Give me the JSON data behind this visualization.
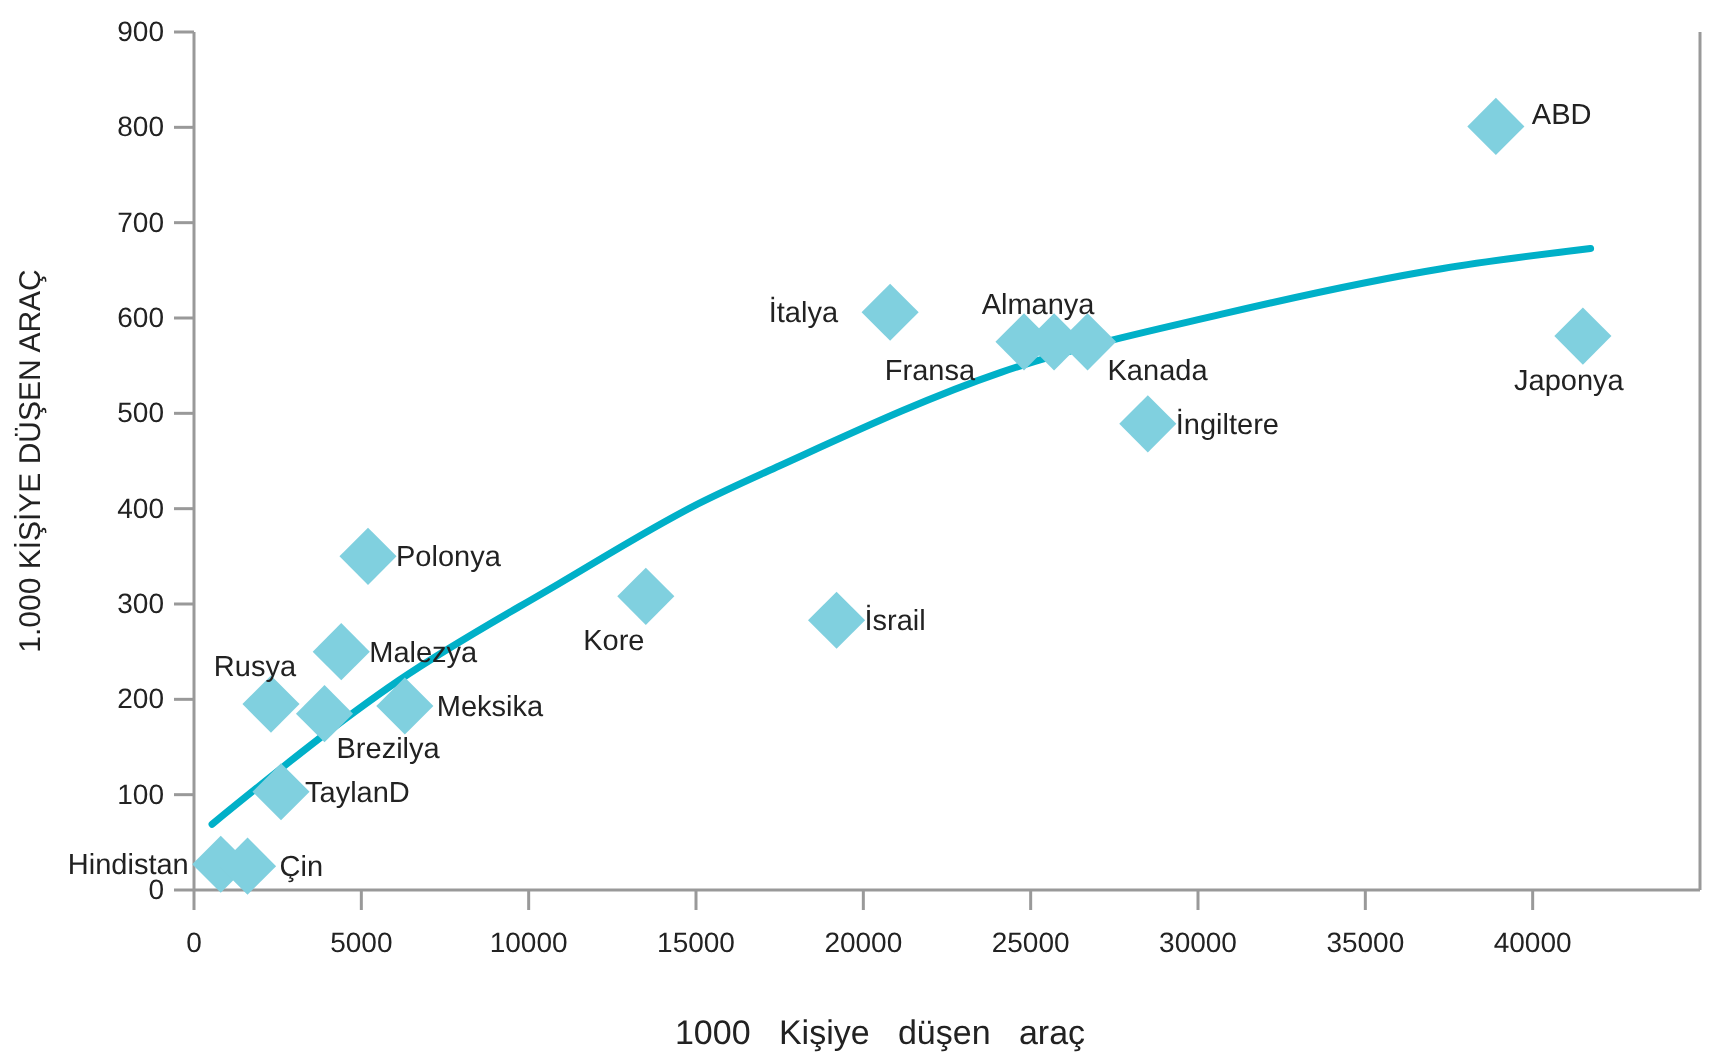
{
  "chart_data": {
    "type": "scatter",
    "xlabel": "1000   Kişiye   düşen   araç",
    "ylabel": "1.000 KİŞİYE DÜŞEN ARAÇ",
    "xlim": [
      0,
      45000
    ],
    "xticks": [
      0,
      5000,
      10000,
      15000,
      20000,
      25000,
      30000,
      35000,
      40000
    ],
    "ylim": [
      0,
      900
    ],
    "yticks": [
      0,
      100,
      200,
      300,
      400,
      500,
      600,
      700,
      800,
      900
    ],
    "series": [
      {
        "marker": "diamond",
        "color": "#80d0df",
        "x": [
          800,
          1600,
          2600,
          2300,
          3900,
          4400,
          5200,
          6300,
          13500,
          19200,
          20800,
          24800,
          25700,
          26700,
          28500,
          38900,
          41500
        ],
        "values": [
          27,
          25,
          103,
          195,
          185,
          250,
          350,
          193,
          308,
          283,
          606,
          575,
          575,
          575,
          489,
          801,
          581
        ]
      },
      {
        "type": "line",
        "marker": "none",
        "color": "#00b0c8",
        "x": [
          540,
          6130,
          10890,
          15060,
          17500,
          24110,
          30710,
          37320,
          41730
        ],
        "values": [
          69,
          220,
          321,
          405,
          445,
          543,
          604,
          652,
          673
        ]
      }
    ],
    "annotations": [
      {
        "text": "Hindistan",
        "x": 800,
        "y": 27
      },
      {
        "text": "Çin",
        "x": 1600,
        "y": 25
      },
      {
        "text": "TaylanD",
        "x": 2600,
        "y": 103
      },
      {
        "text": "Rusya",
        "x": 2300,
        "y": 195
      },
      {
        "text": "Brezilya",
        "x": 3900,
        "y": 185
      },
      {
        "text": "Malezya",
        "x": 4400,
        "y": 250
      },
      {
        "text": "Polonya",
        "x": 5200,
        "y": 350
      },
      {
        "text": "Meksika",
        "x": 6300,
        "y": 193
      },
      {
        "text": "Kore",
        "x": 13500,
        "y": 308
      },
      {
        "text": "İsrail",
        "x": 19200,
        "y": 283
      },
      {
        "text": "İtalya",
        "x": 20800,
        "y": 606
      },
      {
        "text": "Fransa",
        "x": 24800,
        "y": 575
      },
      {
        "text": "Almanya",
        "x": 25700,
        "y": 575
      },
      {
        "text": "Kanada",
        "x": 26700,
        "y": 575
      },
      {
        "text": "İngiltere",
        "x": 28500,
        "y": 489
      },
      {
        "text": "ABD",
        "x": 38900,
        "y": 801
      },
      {
        "text": "Japonya",
        "x": 41500,
        "y": 581
      }
    ]
  }
}
